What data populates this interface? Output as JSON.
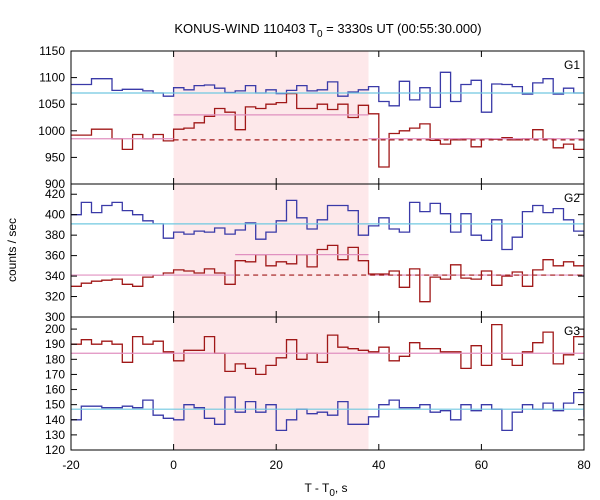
{
  "title_main": "KONUS-WIND 110403 T",
  "title_sub": "0",
  "title_rest": " = 3330s UT (00:55:30.000)",
  "xlabel_main": "T - T",
  "xlabel_sub": "0",
  "xlabel_rest": ", s",
  "ylabel": "counts / sec",
  "colors": {
    "blue": "#3a3aa8",
    "red": "#a01818",
    "cyan": "#70c8e0",
    "pink": "#e090c0",
    "shade": "#fde8ea"
  },
  "chart_data": {
    "type": "line",
    "step": true,
    "xlim": [
      -20,
      80
    ],
    "xticks": [
      -20,
      0,
      20,
      40,
      60,
      80
    ],
    "shaded_interval": [
      0,
      38
    ],
    "panels": [
      {
        "label": "G1",
        "ylim": [
          900,
          1150
        ],
        "yticks": [
          950,
          1000,
          1050,
          1100,
          1150
        ],
        "ytick_labels": [
          "950",
          "1000",
          "1050",
          "1100",
          "1150"
        ],
        "bottom_tick_label": "900",
        "series": [
          {
            "color": "blue",
            "edges": [
              -20,
              -16,
              -12,
              -10,
              -8,
              -6,
              -4,
              -2,
              0,
              2,
              4,
              6,
              8,
              10,
              12,
              14,
              16,
              18,
              20,
              22,
              24,
              26,
              28,
              30,
              32,
              34,
              36,
              38,
              40,
              42,
              44,
              46,
              48,
              50,
              52,
              54,
              56,
              58,
              60,
              62,
              64,
              66,
              68,
              70,
              72,
              74,
              76,
              78,
              80
            ],
            "values": [
              1087,
              1098,
              1076,
              1078,
              1078,
              1075,
              1071,
              1065,
              1081,
              1077,
              1085,
              1086,
              1080,
              1072,
              1075,
              1085,
              1071,
              1077,
              1070,
              1076,
              1085,
              1075,
              1077,
              1092,
              1065,
              1073,
              1077,
              1083,
              1055,
              1047,
              1093,
              1058,
              1081,
              1044,
              1110,
              1055,
              1087,
              1095,
              1035,
              1088,
              1087,
              1083,
              1069,
              1090,
              1098,
              1069,
              1080,
              1071
            ]
          },
          {
            "color": "red",
            "edges": [
              -20,
              -16,
              -12,
              -10,
              -8,
              -6,
              -4,
              -2,
              0,
              2,
              4,
              6,
              8,
              10,
              12,
              14,
              16,
              18,
              20,
              22,
              24,
              26,
              28,
              30,
              32,
              34,
              36,
              38,
              40,
              42,
              44,
              46,
              48,
              50,
              52,
              54,
              56,
              58,
              60,
              62,
              64,
              66,
              68,
              70,
              72,
              74,
              76,
              78,
              80
            ],
            "values": [
              992,
              1003,
              985,
              965,
              993,
              985,
              993,
              981,
              1003,
              1005,
              1015,
              1027,
              1042,
              1035,
              1002,
              1045,
              1042,
              1050,
              1053,
              1070,
              1042,
              1042,
              1050,
              1040,
              1050,
              1025,
              1048,
              1032,
              932,
              995,
              1000,
              1005,
              1013,
              982,
              975,
              983,
              985,
              970,
              985,
              984,
              987,
              983,
              985,
              1002,
              985,
              968,
              975,
              965
            ]
          },
          {
            "color": "cyan",
            "segments": [
              [
                -20,
                1071
              ],
              [
                80,
                1071
              ]
            ]
          },
          {
            "color": "pink",
            "segments": [
              [
                -20,
                985
              ],
              [
                0,
                985
              ]
            ]
          },
          {
            "color": "pink",
            "segments": [
              [
                0,
                1030
              ],
              [
                38,
                1030
              ]
            ]
          },
          {
            "color": "pink",
            "segments": [
              [
                38,
                985
              ],
              [
                80,
                985
              ]
            ]
          },
          {
            "color": "red",
            "dashed": true,
            "segments": [
              [
                0,
                983
              ],
              [
                80,
                983
              ]
            ]
          }
        ]
      },
      {
        "label": "G2",
        "ylim": [
          300,
          430
        ],
        "yticks": [
          320,
          340,
          360,
          380,
          400,
          420
        ],
        "ytick_labels": [
          "320",
          "340",
          "360",
          "380",
          "400",
          "420"
        ],
        "bottom_tick_label": "300",
        "series": [
          {
            "color": "blue",
            "edges": [
              -20,
              -18,
              -16,
              -14,
              -12,
              -10,
              -8,
              -6,
              -4,
              -2,
              0,
              2,
              4,
              6,
              8,
              10,
              12,
              14,
              16,
              18,
              20,
              22,
              24,
              26,
              28,
              30,
              32,
              34,
              36,
              38,
              40,
              42,
              44,
              46,
              48,
              50,
              52,
              54,
              56,
              58,
              60,
              62,
              64,
              66,
              68,
              70,
              72,
              74,
              76,
              78,
              80
            ],
            "values": [
              400,
              412,
              402,
              409,
              412,
              404,
              400,
              394,
              391,
              377,
              383,
              381,
              384,
              383,
              387,
              381,
              385,
              392,
              376,
              383,
              394,
              414,
              397,
              386,
              395,
              409,
              409,
              404,
              380,
              389,
              397,
              386,
              383,
              412,
              403,
              411,
              401,
              383,
              401,
              380,
              375,
              395,
              366,
              378,
              403,
              409,
              402,
              406,
              395,
              384,
              377
            ]
          },
          {
            "color": "red",
            "edges": [
              -20,
              -18,
              -16,
              -14,
              -12,
              -10,
              -8,
              -6,
              -4,
              -2,
              0,
              2,
              4,
              6,
              8,
              10,
              12,
              14,
              16,
              18,
              20,
              22,
              24,
              26,
              28,
              30,
              32,
              34,
              36,
              38,
              40,
              42,
              44,
              46,
              48,
              50,
              52,
              54,
              56,
              58,
              60,
              62,
              64,
              66,
              68,
              70,
              72,
              74,
              76,
              78,
              80
            ],
            "values": [
              330,
              333,
              335,
              336,
              337,
              332,
              330,
              339,
              341,
              343,
              346,
              345,
              343,
              347,
              343,
              332,
              355,
              354,
              361,
              350,
              354,
              352,
              361,
              349,
              366,
              370,
              356,
              368,
              355,
              342,
              342,
              345,
              329,
              347,
              315,
              339,
              337,
              351,
              338,
              337,
              345,
              331,
              340,
              344,
              330,
              346,
              356,
              350,
              354,
              350,
              357
            ]
          },
          {
            "color": "cyan",
            "segments": [
              [
                -20,
                391
              ],
              [
                80,
                391
              ]
            ]
          },
          {
            "color": "pink",
            "segments": [
              [
                -20,
                341
              ],
              [
                12,
                341
              ]
            ]
          },
          {
            "color": "pink",
            "segments": [
              [
                12,
                361
              ],
              [
                38,
                361
              ]
            ]
          },
          {
            "color": "pink",
            "segments": [
              [
                38,
                341
              ],
              [
                80,
                341
              ]
            ]
          },
          {
            "color": "red",
            "dashed": true,
            "segments": [
              [
                12,
                341
              ],
              [
                80,
                341
              ]
            ]
          }
        ]
      },
      {
        "label": "G3",
        "ylim": [
          120,
          208
        ],
        "yticks": [
          120,
          130,
          140,
          150,
          160,
          170,
          180,
          190,
          200
        ],
        "ytick_labels": [
          "120",
          "130",
          "140",
          "150",
          "160",
          "170",
          "180",
          "190",
          "200"
        ],
        "bottom_tick_label": "",
        "series": [
          {
            "color": "red",
            "edges": [
              -20,
              -18,
              -16,
              -14,
              -12,
              -10,
              -8,
              -6,
              -4,
              -2,
              0,
              2,
              4,
              6,
              8,
              10,
              12,
              14,
              16,
              18,
              20,
              22,
              24,
              26,
              28,
              30,
              32,
              34,
              36,
              38,
              40,
              42,
              44,
              46,
              48,
              50,
              52,
              54,
              56,
              58,
              60,
              62,
              64,
              66,
              68,
              70,
              72,
              74,
              76,
              78,
              80
            ],
            "values": [
              190,
              193,
              190,
              192,
              190,
              178,
              195,
              190,
              192,
              185,
              179,
              186,
              186,
              195,
              184,
              172,
              177,
              174,
              170,
              176,
              181,
              193,
              180,
              184,
              178,
              196,
              188,
              187,
              186,
              185,
              188,
              179,
              182,
              191,
              187,
              187,
              185,
              185,
              174,
              189,
              176,
              203,
              180,
              176,
              185,
              191,
              198,
              177,
              183,
              195,
              200
            ]
          },
          {
            "color": "blue",
            "edges": [
              -20,
              -18,
              -16,
              -14,
              -12,
              -10,
              -8,
              -6,
              -4,
              -2,
              0,
              2,
              4,
              6,
              8,
              10,
              12,
              14,
              16,
              18,
              20,
              22,
              24,
              26,
              28,
              30,
              32,
              34,
              36,
              38,
              40,
              42,
              44,
              46,
              48,
              50,
              52,
              54,
              56,
              58,
              60,
              62,
              64,
              66,
              68,
              70,
              72,
              74,
              76,
              78,
              80
            ],
            "values": [
              140,
              149,
              149,
              148,
              148,
              149,
              148,
              153,
              143,
              141,
              140,
              150,
              148,
              141,
              137,
              155,
              145,
              152,
              145,
              150,
              133,
              140,
              147,
              144,
              145,
              143,
              152,
              137,
              137,
              142,
              150,
              153,
              148,
              148,
              150,
              145,
              146,
              140,
              150,
              146,
              150,
              147,
              133,
              145,
              150,
              147,
              151,
              146,
              151,
              158,
              142
            ]
          },
          {
            "color": "pink",
            "segments": [
              [
                -20,
                184
              ],
              [
                80,
                184
              ]
            ]
          },
          {
            "color": "cyan",
            "segments": [
              [
                -20,
                147
              ],
              [
                80,
                147
              ]
            ]
          }
        ]
      }
    ]
  }
}
